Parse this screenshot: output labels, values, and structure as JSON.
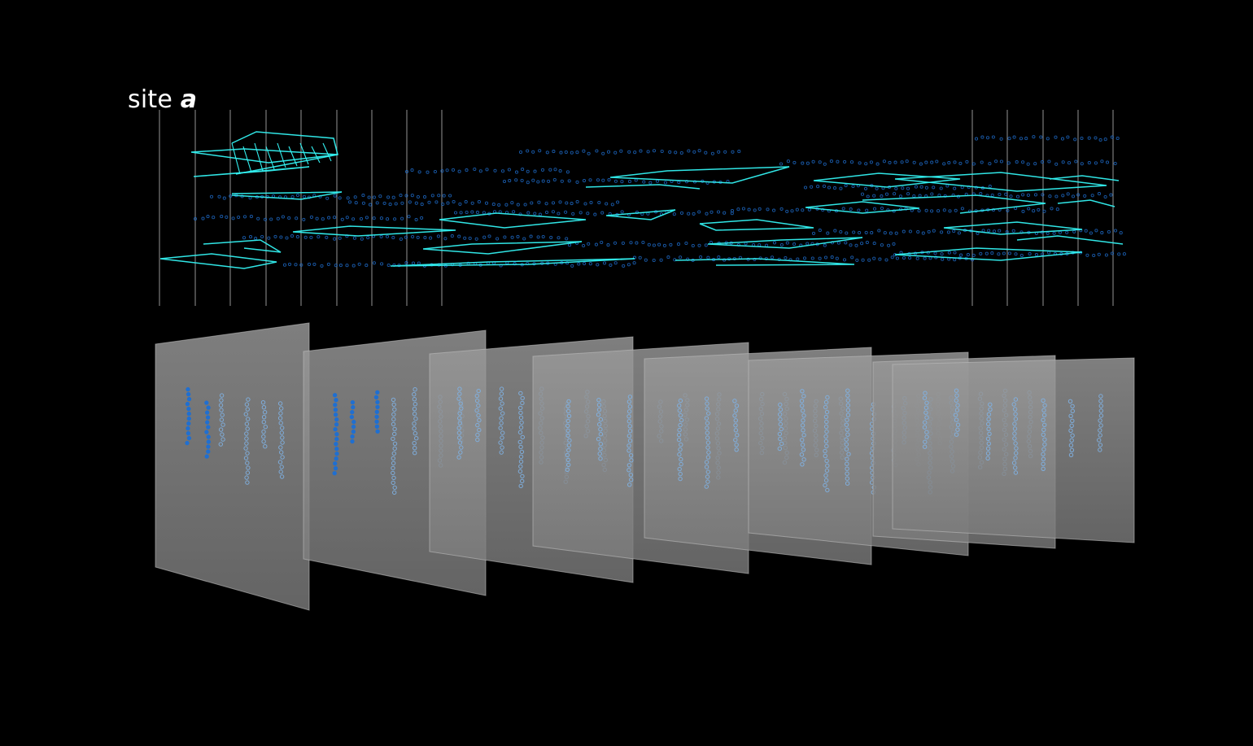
{
  "title": {
    "prefix": "site",
    "emphasis": "a"
  },
  "colors": {
    "background": "#000000",
    "title_text": "#ffffff",
    "trajectory": "#33f2f2",
    "point": "#1f6fd1",
    "point_light": "#7fb3e6",
    "frame_fill": "#8d8d8d",
    "frame_edge": "#bdbdbd",
    "guide_line": "#d9d9d9"
  },
  "upper_panel": {
    "description_visible": false,
    "guide_line_count_left": 9,
    "guide_line_count_right": 5
  },
  "lower_panel": {
    "frame_count": 8
  }
}
